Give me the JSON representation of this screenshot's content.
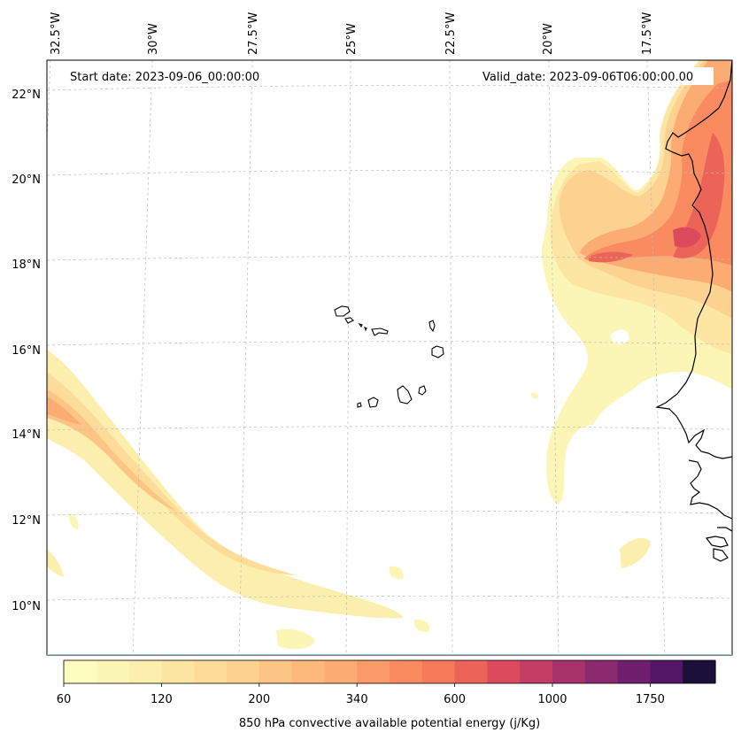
{
  "map": {
    "start_date": "Start date: 2023-09-06_00:00:00",
    "valid_date": "Valid_date: 2023-09-06T06:00:00.00",
    "lon_labels": [
      "32.5°W",
      "30°W",
      "27.5°W",
      "25°W",
      "22.5°W",
      "20°W",
      "17.5°W"
    ],
    "lat_labels": [
      "22°N",
      "20°N",
      "18°N",
      "16°N",
      "14°N",
      "12°N",
      "10°N"
    ]
  },
  "colorbar": {
    "title": "850 hPa convective available potential energy (j/Kg)",
    "tick_labels": [
      "60",
      "120",
      "200",
      "340",
      "600",
      "1000",
      "1750"
    ],
    "colors": [
      "#fcfdbf",
      "#fcf6b6",
      "#fcefad",
      "#fde6a3",
      "#fddc9a",
      "#fdd18f",
      "#fdc585",
      "#fdb87b",
      "#fcab72",
      "#fc9b69",
      "#fa8b60",
      "#f67b59",
      "#ec6358",
      "#dc4b5d",
      "#c33d65",
      "#a8336b",
      "#8c2a6f",
      "#701f6f",
      "#531667",
      "#1a1039"
    ]
  }
}
